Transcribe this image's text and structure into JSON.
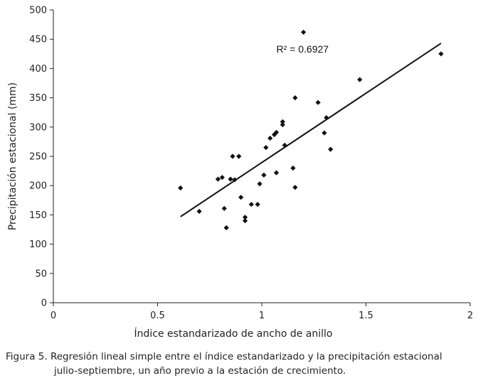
{
  "chart_data": {
    "type": "scatter",
    "title": "",
    "xlabel": "Índice estandarizado de ancho de anillo",
    "ylabel": "Precipitación estacional (mm)",
    "xlim": [
      0,
      2
    ],
    "ylim": [
      0,
      500
    ],
    "x_ticks": [
      "0",
      "0.5",
      "1",
      "1.5",
      "2"
    ],
    "y_ticks": [
      "0",
      "50",
      "100",
      "150",
      "200",
      "250",
      "300",
      "350",
      "400",
      "450",
      "500"
    ],
    "grid": false,
    "legend": "none",
    "points": [
      {
        "x": 0.61,
        "y": 196
      },
      {
        "x": 0.7,
        "y": 156
      },
      {
        "x": 0.79,
        "y": 211
      },
      {
        "x": 0.81,
        "y": 214
      },
      {
        "x": 0.82,
        "y": 161
      },
      {
        "x": 0.83,
        "y": 128
      },
      {
        "x": 0.85,
        "y": 211
      },
      {
        "x": 0.86,
        "y": 250
      },
      {
        "x": 0.87,
        "y": 210
      },
      {
        "x": 0.89,
        "y": 250
      },
      {
        "x": 0.9,
        "y": 180
      },
      {
        "x": 0.92,
        "y": 140
      },
      {
        "x": 0.92,
        "y": 146
      },
      {
        "x": 0.95,
        "y": 168
      },
      {
        "x": 0.98,
        "y": 168
      },
      {
        "x": 0.99,
        "y": 203
      },
      {
        "x": 1.01,
        "y": 218
      },
      {
        "x": 1.02,
        "y": 265
      },
      {
        "x": 1.04,
        "y": 281
      },
      {
        "x": 1.06,
        "y": 287
      },
      {
        "x": 1.07,
        "y": 222
      },
      {
        "x": 1.07,
        "y": 291
      },
      {
        "x": 1.1,
        "y": 304
      },
      {
        "x": 1.1,
        "y": 309
      },
      {
        "x": 1.11,
        "y": 269
      },
      {
        "x": 1.15,
        "y": 230
      },
      {
        "x": 1.16,
        "y": 350
      },
      {
        "x": 1.16,
        "y": 197
      },
      {
        "x": 1.2,
        "y": 462
      },
      {
        "x": 1.27,
        "y": 342
      },
      {
        "x": 1.3,
        "y": 290
      },
      {
        "x": 1.31,
        "y": 316
      },
      {
        "x": 1.33,
        "y": 262
      },
      {
        "x": 1.47,
        "y": 381
      },
      {
        "x": 1.86,
        "y": 425
      }
    ],
    "trendline": {
      "x": [
        0.61,
        1.86
      ],
      "y": [
        147,
        443
      ]
    },
    "annotation": "R² = 0.6927",
    "annotation_x": 1.07,
    "annotation_y": 427,
    "marker_color": "#111111",
    "line_color": "#111111"
  },
  "caption": {
    "line1": "Figura 5. Regresión lineal simple entre el índice estandarizado y la precipitación estacional",
    "line2": "julio-septiembre, un año previo a la estación de crecimiento."
  }
}
